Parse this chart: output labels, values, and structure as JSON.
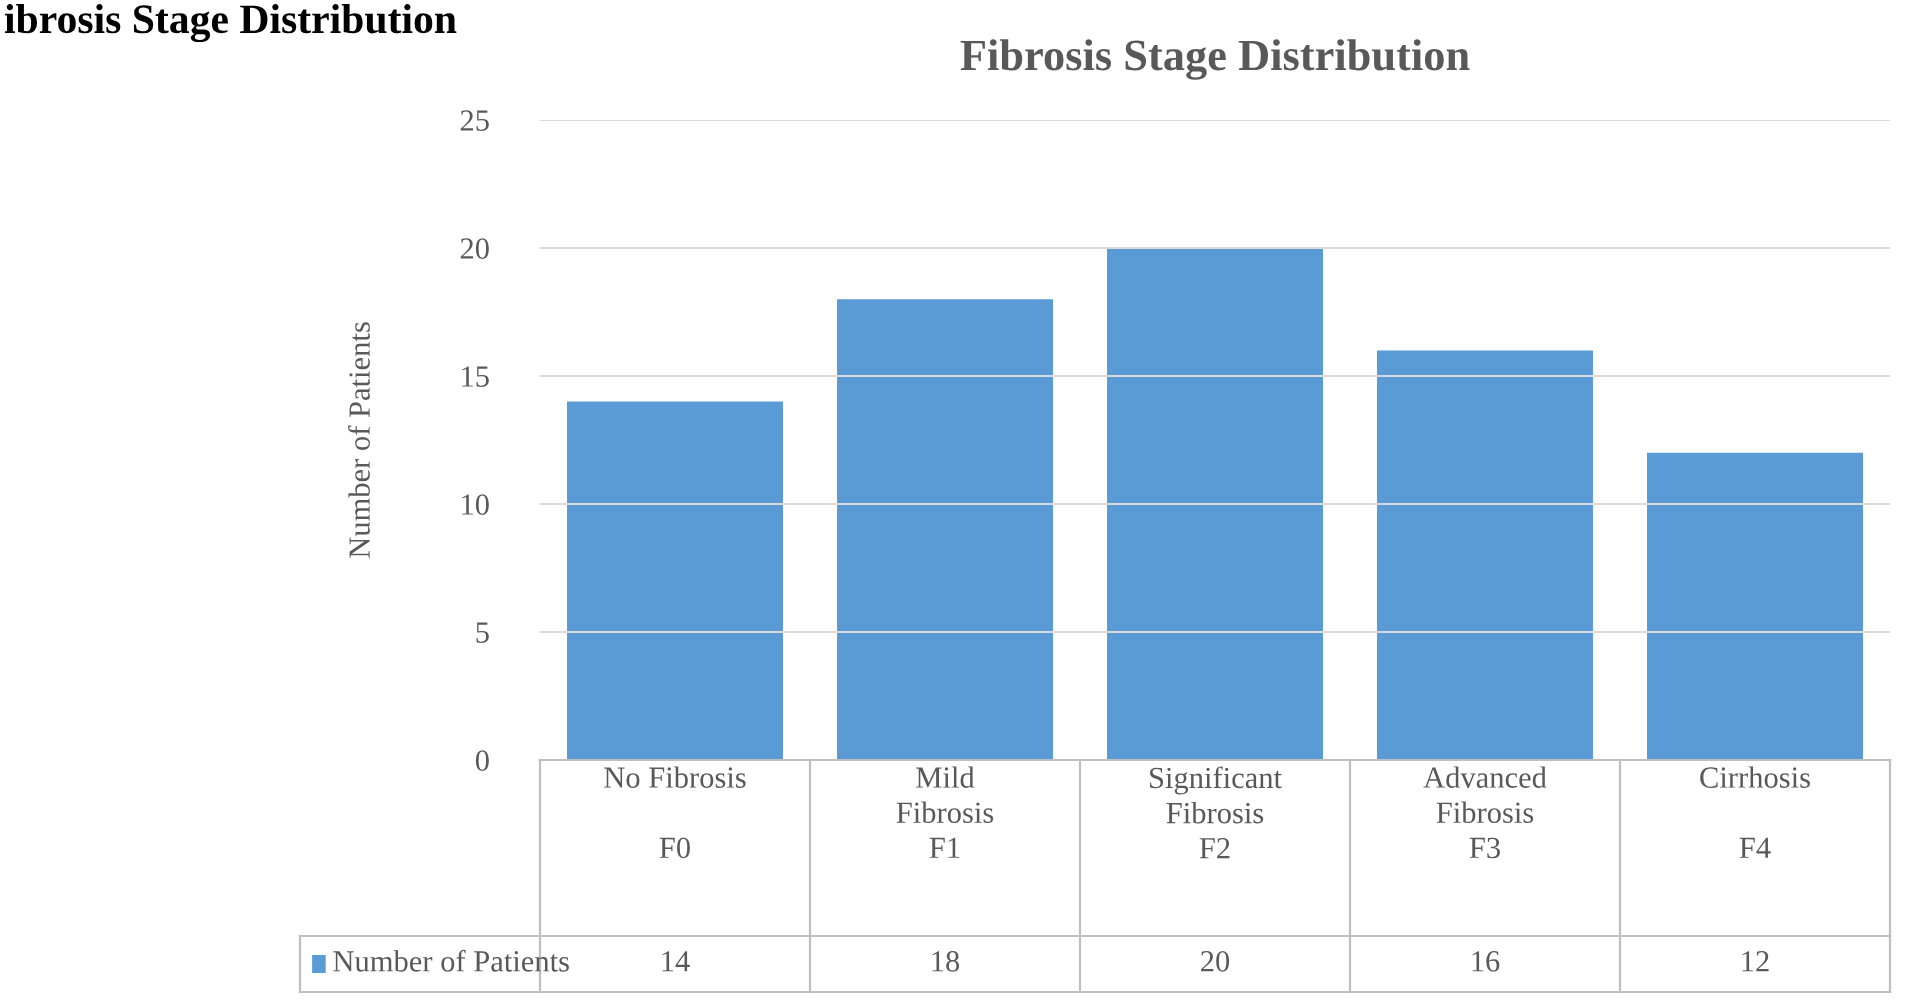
{
  "chart_data": {
    "type": "bar",
    "title": "Fibrosis Stage Distribution",
    "ylabel": "Number of Patients",
    "annotations": [
      "ibrosis Stage Distribution"
    ],
    "categories": [
      "No Fibrosis\n\nF0",
      "Mild\nFibrosis\nF1",
      "Significant\nFibrosis\nF2",
      "Advanced\nFibrosis\nF3",
      "Cirrhosis\n\nF4"
    ],
    "series": [
      {
        "name": "Number of Patients",
        "color": "#5b9bd5",
        "values": [
          14,
          18,
          20,
          16,
          12
        ]
      }
    ],
    "ylim": [
      0,
      25
    ],
    "yticks": [
      0,
      5,
      10,
      15,
      20,
      25
    ],
    "grid": "y",
    "legend": "bottom",
    "data_labels": true
  }
}
